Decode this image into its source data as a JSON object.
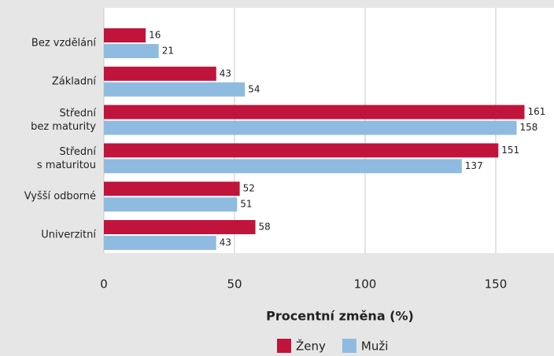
{
  "chart_data": {
    "type": "barh",
    "categories": [
      "Bez vzdělání",
      "Základní",
      "Střední\nbez maturity",
      "Střední\ns maturitou",
      "Vyšší odborné",
      "Univerzitní"
    ],
    "series": [
      {
        "name": "Ženy",
        "color": "#c0143c",
        "values": [
          16,
          43,
          161,
          151,
          52,
          58
        ]
      },
      {
        "name": "Muži",
        "color": "#8fbbe0",
        "values": [
          21,
          54,
          158,
          137,
          51,
          43
        ]
      }
    ],
    "xlabel": "Procentní změna (%)",
    "xlim": [
      0,
      172.3
    ],
    "xticks": [
      0,
      50,
      100,
      150
    ],
    "grid": true,
    "legend": "bottom"
  }
}
